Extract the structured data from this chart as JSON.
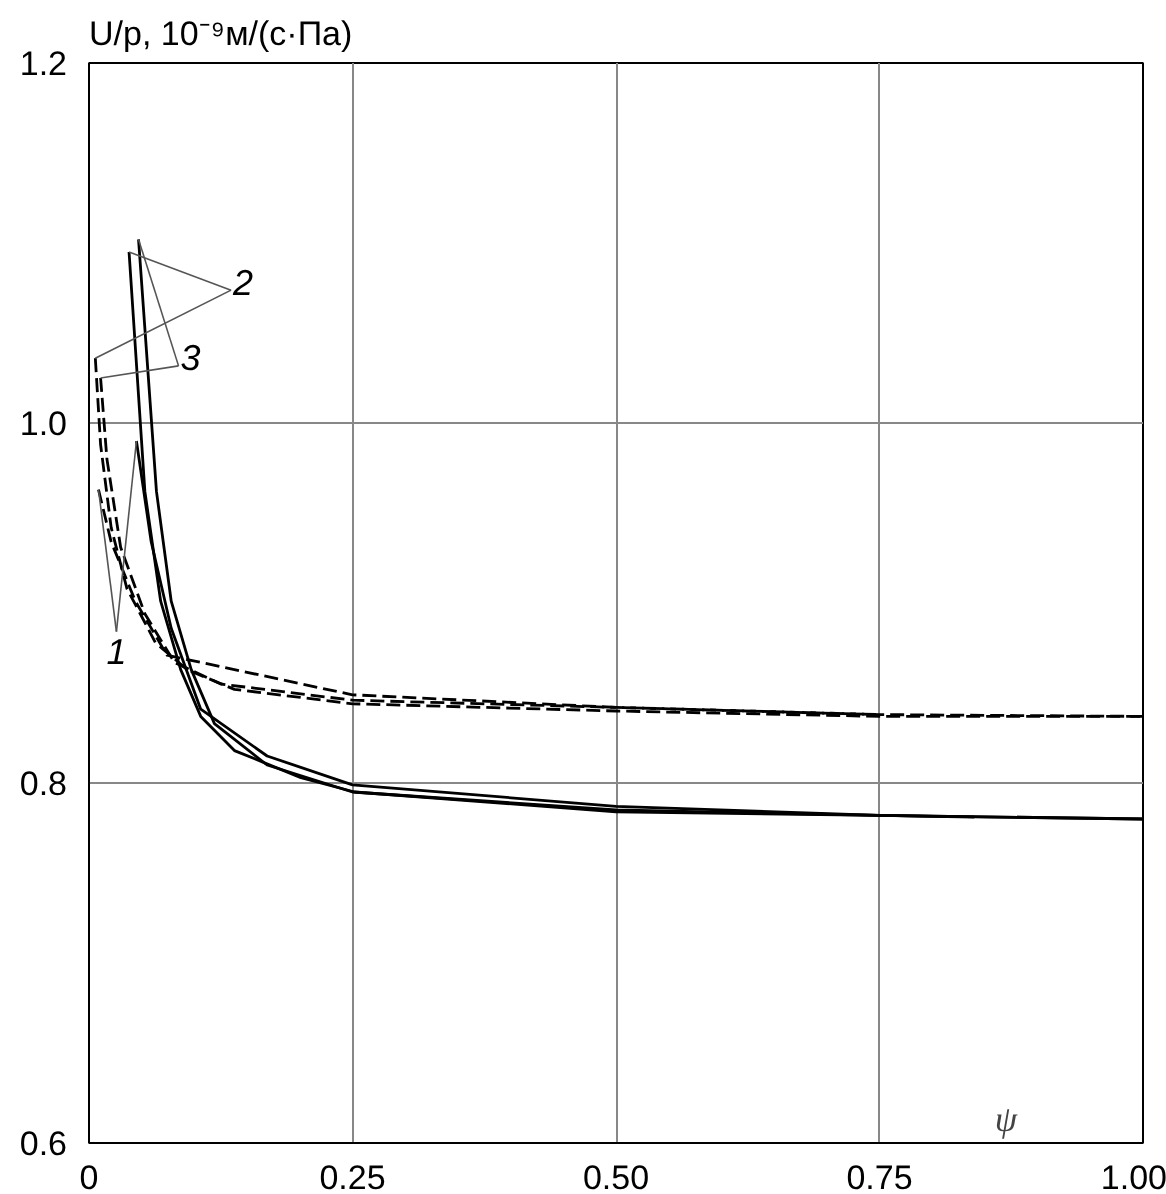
{
  "chart_data": {
    "type": "line",
    "xlabel": "ψ",
    "ylabel": "U/p, 10⁻⁹м/(с·Па)",
    "xlim": [
      0,
      1
    ],
    "ylim": [
      0.6,
      1.2
    ],
    "xticks": [
      0,
      0.25,
      {
        "value": 0.5,
        "label": "0.50"
      },
      0.75,
      {
        "value": 1,
        "label": "1.00"
      }
    ],
    "yticks": [
      0.6,
      0.8,
      {
        "value": 1,
        "label": "1.0"
      },
      1.2
    ],
    "grid": true,
    "series": [
      {
        "name": "2",
        "color": "#000000",
        "line_style": "solid",
        "x": [
          0.038,
          0.053,
          0.068,
          0.087,
          0.106,
          0.138,
          0.201,
          0.252,
          0.5,
          0.749,
          1.0
        ],
        "values": [
          1.095,
          0.962,
          0.901,
          0.863,
          0.837,
          0.818,
          0.803,
          0.795,
          0.784,
          0.782,
          0.78
        ]
      },
      {
        "name": "3",
        "color": "#000000",
        "line_style": "solid",
        "x": [
          0.047,
          0.064,
          0.078,
          0.097,
          0.119,
          0.169,
          0.25,
          0.5,
          0.75,
          1.0
        ],
        "values": [
          1.102,
          0.962,
          0.901,
          0.863,
          0.833,
          0.81,
          0.795,
          0.785,
          0.782,
          0.78
        ]
      },
      {
        "name": "1",
        "color": "#000000",
        "line_style": "solid",
        "x": [
          0.045,
          0.059,
          0.078,
          0.106,
          0.169,
          0.25,
          0.5,
          0.75,
          0.84
        ],
        "values": [
          0.99,
          0.934,
          0.886,
          0.841,
          0.815,
          0.799,
          0.787,
          0.782,
          0.781
        ]
      },
      {
        "color": "#000000",
        "line_style": "dashed",
        "x": [
          0.006,
          0.011,
          0.021,
          0.036,
          0.063,
          0.093,
          0.138,
          0.25,
          0.5,
          0.75,
          1.0
        ],
        "values": [
          1.036,
          0.988,
          0.942,
          0.908,
          0.878,
          0.863,
          0.852,
          0.844,
          0.84,
          0.837,
          0.837
        ]
      },
      {
        "color": "#000000",
        "line_style": "dashed",
        "x": [
          0.011,
          0.017,
          0.03,
          0.053,
          0.081,
          0.125,
          0.25,
          0.5,
          0.75,
          1.0
        ],
        "values": [
          1.025,
          0.98,
          0.931,
          0.894,
          0.867,
          0.855,
          0.846,
          0.842,
          0.838,
          0.837
        ]
      },
      {
        "color": "#000000",
        "line_style": "dashed",
        "x": [
          0.009,
          0.021,
          0.044,
          0.074,
          0.25,
          0.5,
          0.75
        ],
        "values": [
          0.963,
          0.934,
          0.901,
          0.871,
          0.849,
          0.842,
          0.838
        ]
      }
    ]
  }
}
